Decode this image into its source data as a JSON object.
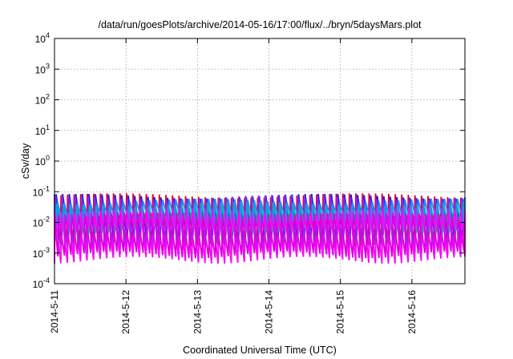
{
  "chart_data": {
    "type": "line",
    "title": "/data/run/goesPlots/archive/2014-05-16/17:00/flux/../bryn/5daysMars.plot",
    "xlabel": "Coordinated Universal Time (UTC)",
    "ylabel": "cSv/day",
    "yscale": "log",
    "ylim": [
      0.0001,
      10000
    ],
    "y_ticks": [
      {
        "base": "10",
        "exp": "-4",
        "value": 0.0001
      },
      {
        "base": "10",
        "exp": "-3",
        "value": 0.001
      },
      {
        "base": "10",
        "exp": "-2",
        "value": 0.01
      },
      {
        "base": "10",
        "exp": "-1",
        "value": 0.1
      },
      {
        "base": "10",
        "exp": "0",
        "value": 1
      },
      {
        "base": "10",
        "exp": "1",
        "value": 10
      },
      {
        "base": "10",
        "exp": "2",
        "value": 100
      },
      {
        "base": "10",
        "exp": "3",
        "value": 1000
      },
      {
        "base": "10",
        "exp": "4",
        "value": 10000
      }
    ],
    "xlim": [
      "2014-05-11",
      "2014-05-16 17:48"
    ],
    "x_ticks": [
      "2014-5-11",
      "2014-5-12",
      "2014-5-13",
      "2014-5-14",
      "2014-5-15",
      "2014-5-16"
    ],
    "grid": true,
    "period_hours": 2.2,
    "series": [
      {
        "color": "#e8002a",
        "peak": 0.075,
        "trough": 0.0016,
        "phase_h": 0.0
      },
      {
        "color": "#1a1aff",
        "peak": 0.072,
        "trough": 0.003,
        "phase_h": 0.55
      },
      {
        "color": "#8a2be2",
        "peak": 0.065,
        "trough": 0.0012,
        "phase_h": 0.3
      },
      {
        "color": "#00b894",
        "peak": 0.04,
        "trough": 0.006,
        "phase_h": 0.8
      },
      {
        "color": "#1e90ff",
        "peak": 0.05,
        "trough": 0.009,
        "phase_h": 1.1
      },
      {
        "color": "#ff00ff",
        "peak": 0.025,
        "trough": 0.0006,
        "phase_h": 0.2
      },
      {
        "color": "#dd00dd",
        "peak": 0.018,
        "trough": 0.0009,
        "phase_h": 1.4
      }
    ]
  }
}
